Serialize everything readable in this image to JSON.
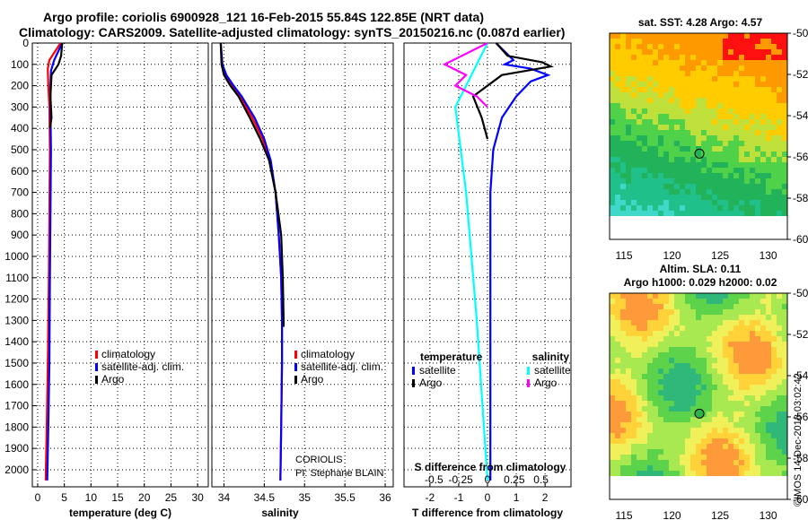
{
  "title": {
    "line1": "Argo profile: coriolis 6900928_121 16-Feb-2015 55.84S 122.85E (NRT data)",
    "line2": "Climatology: CARS2009. Satellite-adjusted climatology: synTS_20150216.nc (0.087d earlier)"
  },
  "credit": {
    "org": "CORIOLIS",
    "pi": "PI: Stephane BLAIN",
    "stamp": "©IMOS 14-Dec-2018 03:02:42"
  },
  "map_top": {
    "title": "sat. SST: 4.28 Argo: 4.57"
  },
  "map_bottom": {
    "title1": "Altim. SLA: 0.11",
    "title2": "Argo h1000: 0.029 h2000: 0.02"
  },
  "colors": {
    "climatology": "#ff0000",
    "satellite": "#0000ff",
    "argo": "#000000",
    "sat_sal": "#00ffff",
    "argo_sal": "#ff00ff"
  },
  "chart_data": [
    {
      "id": "temperature",
      "type": "line",
      "xlabel": "temperature (deg C)",
      "ylabel": "",
      "xlim": [
        -1,
        32
      ],
      "ylim": [
        2080,
        0
      ],
      "xticks": [
        0,
        5,
        10,
        15,
        20,
        25,
        30
      ],
      "yticks": [
        0,
        100,
        200,
        300,
        400,
        500,
        600,
        700,
        800,
        900,
        1000,
        1100,
        1200,
        1300,
        1400,
        1500,
        1600,
        1700,
        1800,
        1900,
        2000
      ],
      "legend": [
        "climatology",
        "satellite-adj. clim.",
        "Argo"
      ],
      "series": [
        {
          "name": "climatology",
          "x": [
            4.3,
            2.2,
            1.9,
            2.0,
            2.2,
            2.3,
            2.2,
            2.1,
            1.9,
            1.7,
            1.5
          ],
          "y": [
            0,
            80,
            120,
            200,
            300,
            500,
            800,
            1100,
            1500,
            1800,
            2050
          ]
        },
        {
          "name": "satellite-adj. clim.",
          "x": [
            4.6,
            3.1,
            2.5,
            2.4,
            2.4,
            2.5,
            2.4,
            2.3,
            2.2,
            2.0,
            1.8
          ],
          "y": [
            0,
            80,
            130,
            200,
            300,
            500,
            800,
            1100,
            1500,
            1800,
            2050
          ]
        },
        {
          "name": "Argo",
          "x": [
            4.6,
            4.4,
            3.9,
            2.6,
            2.4,
            2.6,
            2.3
          ],
          "y": [
            0,
            60,
            100,
            150,
            250,
            350,
            400
          ]
        }
      ]
    },
    {
      "id": "salinity",
      "type": "line",
      "xlabel": "salinity",
      "ylabel": "",
      "xlim": [
        33.85,
        36.1
      ],
      "ylim": [
        2080,
        0
      ],
      "xticks": [
        34,
        34.5,
        35,
        35.5,
        36
      ],
      "legend": [
        "climatology",
        "satellite-adj. clim.",
        "Argo"
      ],
      "series": [
        {
          "name": "climatology",
          "x": [
            33.96,
            33.98,
            34.02,
            34.1,
            34.2,
            34.35,
            34.48,
            34.57,
            34.64,
            34.68,
            34.71,
            34.72,
            34.72,
            34.71,
            34.7
          ],
          "y": [
            0,
            100,
            150,
            200,
            250,
            350,
            450,
            550,
            700,
            900,
            1100,
            1300,
            1500,
            1800,
            2050
          ]
        },
        {
          "name": "satellite-adj. clim.",
          "x": [
            33.96,
            33.98,
            34.03,
            34.12,
            34.22,
            34.38,
            34.5,
            34.58,
            34.64,
            34.68,
            34.71,
            34.72,
            34.72,
            34.71,
            34.7
          ],
          "y": [
            0,
            100,
            150,
            200,
            250,
            350,
            450,
            550,
            700,
            900,
            1100,
            1300,
            1500,
            1800,
            2050
          ]
        },
        {
          "name": "Argo",
          "x": [
            33.96,
            33.97,
            34.0,
            34.08,
            34.18,
            34.32,
            34.45,
            34.56,
            34.64,
            34.71,
            34.73,
            34.74,
            34.74
          ],
          "y": [
            0,
            100,
            150,
            200,
            250,
            350,
            450,
            550,
            700,
            900,
            1100,
            1300,
            1330
          ]
        }
      ]
    },
    {
      "id": "difference",
      "type": "line",
      "xlabel": "T difference from climatology",
      "ylabel": "",
      "xlim": [
        -2.9,
        2.9
      ],
      "ylim": [
        2080,
        0
      ],
      "xticks": [
        -2,
        -1,
        0,
        1,
        2
      ],
      "xlabel2": "S difference from climatology",
      "xticks2": [
        -0.5,
        -0.25,
        0,
        0.25,
        0.5
      ],
      "legend_left": {
        "title": "temperature",
        "items": [
          "satellite",
          "Argo"
        ]
      },
      "legend_right": {
        "title": "salinity",
        "items": [
          "satellite",
          "Argo"
        ]
      },
      "series": [
        {
          "name": "temperature satellite",
          "x": [
            0.3,
            0.9,
            0.6,
            1.5,
            2.1,
            1.5,
            1.0,
            0.5,
            0.2,
            0.1,
            0.1,
            0.1,
            0.1
          ],
          "y": [
            0,
            80,
            100,
            120,
            150,
            180,
            250,
            350,
            500,
            700,
            1000,
            1500,
            2050
          ]
        },
        {
          "name": "temperature Argo",
          "x": [
            0.3,
            0.7,
            1.9,
            2.2,
            0.5,
            -0.5,
            -0.2,
            -0.1,
            0.0
          ],
          "y": [
            0,
            60,
            90,
            110,
            150,
            250,
            350,
            400,
            450
          ]
        },
        {
          "name": "salinity satellite",
          "x": [
            0.0,
            -0.1,
            -0.2,
            -0.3,
            -0.2,
            -0.1,
            0.0
          ],
          "y": [
            0,
            100,
            200,
            300,
            700,
            1300,
            2050
          ]
        },
        {
          "name": "salinity Argo",
          "x": [
            0.0,
            -0.4,
            -0.2,
            -0.3,
            -0.1,
            0.0
          ],
          "y": [
            0,
            100,
            150,
            200,
            250,
            300
          ]
        }
      ]
    },
    {
      "id": "sst_map",
      "type": "heatmap",
      "xticks": [
        115,
        120,
        125,
        130
      ],
      "yticks": [
        -50,
        -52,
        -54,
        -56,
        -58,
        -60
      ],
      "xlim": [
        113.5,
        132
      ],
      "ylim": [
        -60,
        -50
      ],
      "marker": {
        "lon": 122.85,
        "lat": -55.84
      }
    },
    {
      "id": "sla_map",
      "type": "heatmap",
      "xticks": [
        115,
        120,
        125,
        130
      ],
      "yticks": [
        -50,
        -52,
        -54,
        -56,
        -58,
        -60
      ],
      "xlim": [
        113.5,
        132
      ],
      "ylim": [
        -60,
        -50
      ],
      "marker": {
        "lon": 122.85,
        "lat": -55.84
      }
    }
  ]
}
